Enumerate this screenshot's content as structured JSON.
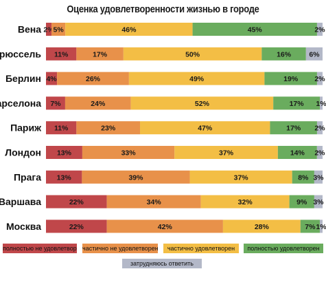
{
  "chart_data": {
    "type": "bar",
    "stacked": true,
    "orientation": "horizontal",
    "title": "Оценка удовлетворенности жизнью в городе",
    "categories": [
      "Вена",
      "Брюссель",
      "Берлин",
      "Барселона",
      "Париж",
      "Лондон",
      "Прага",
      "Варшава",
      "Москва"
    ],
    "series": [
      {
        "name": "полностью не удовлетворен",
        "color": "#c0474a",
        "values": [
          2,
          11,
          4,
          7,
          11,
          13,
          13,
          22,
          22
        ]
      },
      {
        "name": "частично не удовлетворен",
        "color": "#e8914a",
        "values": [
          5,
          17,
          26,
          24,
          23,
          33,
          39,
          34,
          42
        ]
      },
      {
        "name": "частично удовлетворен",
        "color": "#f3be45",
        "values": [
          46,
          50,
          49,
          52,
          47,
          37,
          37,
          32,
          28
        ]
      },
      {
        "name": "полностью удовлетворен",
        "color": "#6aac5e",
        "values": [
          45,
          16,
          19,
          17,
          17,
          14,
          8,
          9,
          7
        ]
      },
      {
        "name": "затрудняюсь ответить",
        "color": "#b3b8c8",
        "values": [
          2,
          6,
          2,
          1,
          2,
          2,
          3,
          3,
          1
        ]
      }
    ],
    "labels_override": {
      "Вена": {
        "0": "2%"
      }
    },
    "value_suffix": "%",
    "legend_position": "bottom",
    "grid": false
  }
}
